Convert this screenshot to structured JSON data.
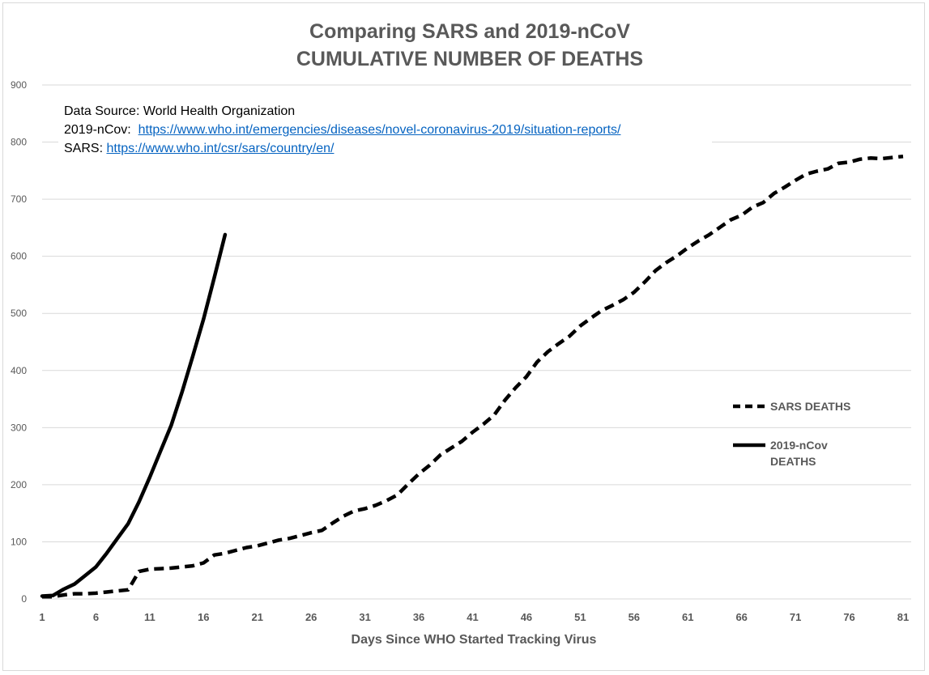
{
  "title": {
    "line1": "Comparing SARS and 2019-nCoV",
    "line2": "CUMULATIVE NUMBER OF DEATHS"
  },
  "source": {
    "line1": "Data Source: World Health Organization",
    "ncov_label": "2019-nCov:",
    "ncov_url": "https://www.who.int/emergencies/diseases/novel-coronavirus-2019/situation-reports/",
    "sars_label": "SARS:",
    "sars_url": "https://www.who.int/csr/sars/country/en/"
  },
  "colors": {
    "line": "#000000",
    "grid": "#d9d9d9",
    "text": "#595959",
    "link": "#0563c1"
  },
  "chart_data": {
    "type": "line",
    "title": "Comparing SARS and 2019-nCoV CUMULATIVE NUMBER OF DEATHS",
    "xlabel": "Days Since WHO Started Tracking Virus",
    "ylabel": "",
    "xlim": [
      1,
      81
    ],
    "ylim": [
      0,
      900
    ],
    "xticks": [
      1,
      6,
      11,
      16,
      21,
      26,
      31,
      36,
      41,
      46,
      51,
      56,
      61,
      66,
      71,
      76,
      81
    ],
    "yticks": [
      0,
      100,
      200,
      300,
      400,
      500,
      600,
      700,
      800,
      900
    ],
    "grid": "horizontal",
    "legend_position": "right",
    "series": [
      {
        "name": "SARS DEATHS",
        "style": "dashed",
        "x": [
          1,
          2,
          3,
          4,
          5,
          6,
          7,
          8,
          9,
          10,
          11,
          12,
          13,
          14,
          15,
          16,
          17,
          18,
          19,
          20,
          21,
          22,
          23,
          24,
          25,
          26,
          27,
          28,
          29,
          30,
          31,
          32,
          33,
          34,
          35,
          36,
          37,
          38,
          39,
          40,
          41,
          42,
          43,
          44,
          45,
          46,
          47,
          48,
          49,
          50,
          51,
          52,
          53,
          54,
          55,
          56,
          57,
          58,
          59,
          60,
          61,
          62,
          63,
          64,
          65,
          66,
          67,
          68,
          69,
          70,
          71,
          72,
          73,
          74,
          75,
          76,
          77,
          78,
          79,
          80,
          81
        ],
        "values": [
          4,
          4,
          7,
          9,
          9,
          10,
          12,
          14,
          16,
          48,
          52,
          53,
          54,
          56,
          58,
          63,
          77,
          80,
          85,
          90,
          93,
          98,
          103,
          106,
          111,
          116,
          120,
          133,
          145,
          154,
          158,
          164,
          172,
          182,
          201,
          219,
          234,
          252,
          264,
          276,
          292,
          306,
          322,
          348,
          370,
          389,
          415,
          433,
          447,
          460,
          478,
          492,
          505,
          514,
          524,
          537,
          555,
          575,
          589,
          601,
          615,
          627,
          638,
          651,
          664,
          672,
          686,
          694,
          710,
          721,
          733,
          744,
          749,
          753,
          763,
          765,
          770,
          772,
          771,
          773,
          775
        ]
      },
      {
        "name": "2019-nCov DEATHS",
        "style": "solid",
        "x": [
          1,
          2,
          3,
          4,
          5,
          6,
          7,
          8,
          9,
          10,
          11,
          12,
          13,
          14,
          15,
          16,
          17,
          18
        ],
        "values": [
          5,
          6,
          17,
          26,
          41,
          56,
          80,
          106,
          132,
          170,
          213,
          259,
          304,
          362,
          425,
          490,
          563,
          638
        ]
      }
    ]
  }
}
